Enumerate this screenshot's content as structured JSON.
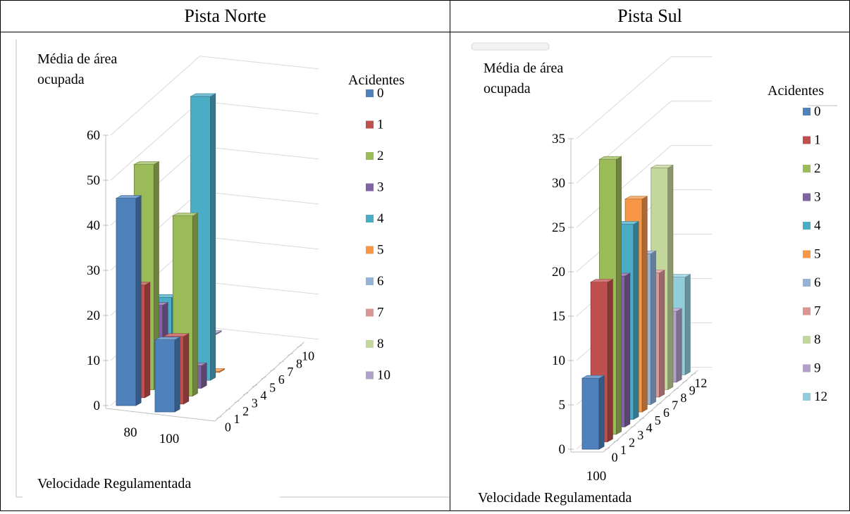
{
  "headers": {
    "left": "Pista Norte",
    "right": "Pista Sul"
  },
  "chart_data": [
    {
      "type": "bar",
      "title": "Pista Norte",
      "ylabel": "Média de área ocupada",
      "xlabel": "Velocidade Regulamentada",
      "legend_title": "Acidentes",
      "legend_position": "right",
      "ylim": [
        0,
        60
      ],
      "yticks": [
        0,
        10,
        20,
        30,
        40,
        50,
        60
      ],
      "categories": [
        "80",
        "100"
      ],
      "depth_labels": [
        "0",
        "1",
        "2",
        "3",
        "4",
        "5",
        "6",
        "7",
        "8",
        "10"
      ],
      "series": [
        {
          "name": "0",
          "color": "#4F81BD",
          "values": [
            46,
            16
          ]
        },
        {
          "name": "1",
          "color": "#C0504D",
          "values": [
            25,
            15
          ]
        },
        {
          "name": "2",
          "color": "#9BBB59",
          "values": [
            50,
            40
          ]
        },
        {
          "name": "3",
          "color": "#8064A2",
          "values": [
            17,
            5
          ]
        },
        {
          "name": "4",
          "color": "#4BACC6",
          "values": [
            17,
            63
          ]
        },
        {
          "name": "5",
          "color": "#F79646",
          "values": [
            null,
            0
          ]
        },
        {
          "name": "6",
          "color": "#95B3D7",
          "values": [
            null,
            null
          ]
        },
        {
          "name": "7",
          "color": "#DA9694",
          "values": [
            null,
            null
          ]
        },
        {
          "name": "8",
          "color": "#C3D69B",
          "values": [
            0,
            null
          ]
        },
        {
          "name": "10",
          "color": "#B1A0C7",
          "values": [
            0,
            null
          ]
        }
      ]
    },
    {
      "type": "bar",
      "title": "Pista Sul",
      "ylabel": "Média de área ocupada",
      "xlabel": "Velocidade Regulamentada",
      "legend_title": "Acidentes",
      "legend_position": "right",
      "ylim": [
        0,
        35
      ],
      "yticks": [
        0,
        5,
        10,
        15,
        20,
        25,
        30,
        35
      ],
      "categories": [
        "100"
      ],
      "depth_labels": [
        "0",
        "1",
        "2",
        "3",
        "4",
        "5",
        "6",
        "7",
        "8",
        "9",
        "12"
      ],
      "series": [
        {
          "name": "0",
          "color": "#4F81BD",
          "values": [
            8
          ]
        },
        {
          "name": "1",
          "color": "#C0504D",
          "values": [
            18
          ]
        },
        {
          "name": "2",
          "color": "#9BBB59",
          "values": [
            31
          ]
        },
        {
          "name": "3",
          "color": "#8064A2",
          "values": [
            17
          ]
        },
        {
          "name": "4",
          "color": "#4BACC6",
          "values": [
            22
          ]
        },
        {
          "name": "5",
          "color": "#F79646",
          "values": [
            24
          ]
        },
        {
          "name": "6",
          "color": "#95B3D7",
          "values": [
            17
          ]
        },
        {
          "name": "7",
          "color": "#DA9694",
          "values": [
            14
          ]
        },
        {
          "name": "8",
          "color": "#C3D69B",
          "values": [
            25
          ]
        },
        {
          "name": "9",
          "color": "#B1A0C7",
          "values": [
            8
          ]
        },
        {
          "name": "12",
          "color": "#92CDDC",
          "values": [
            11
          ]
        }
      ]
    }
  ]
}
